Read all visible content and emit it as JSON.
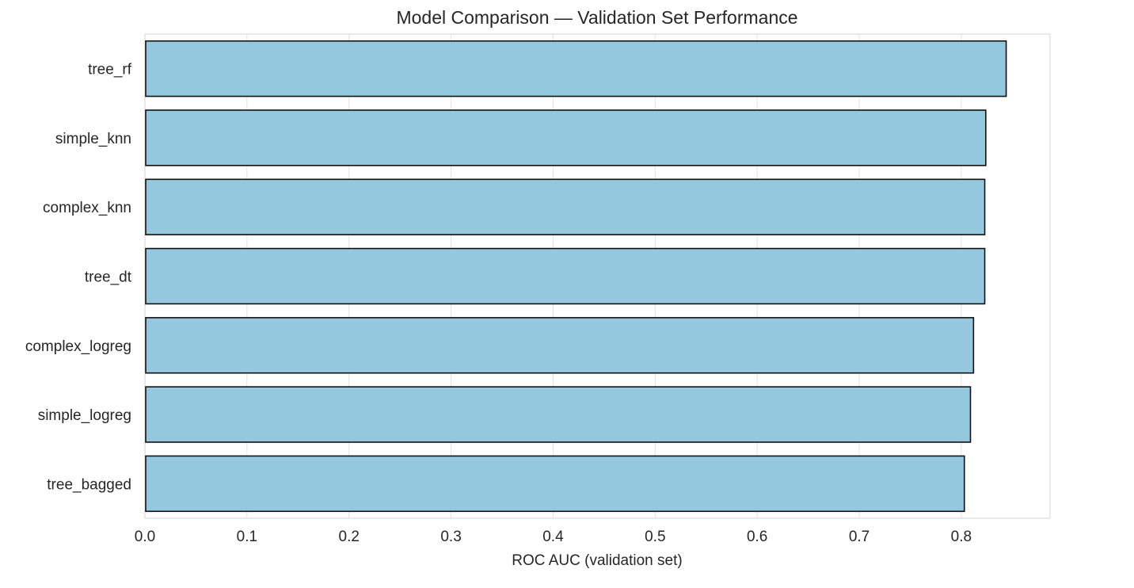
{
  "chart_data": {
    "type": "bar",
    "orientation": "horizontal",
    "title": "Model Comparison — Validation Set Performance",
    "xlabel": "ROC AUC (validation set)",
    "ylabel": "",
    "categories": [
      "tree_rf",
      "simple_knn",
      "complex_knn",
      "tree_dt",
      "complex_logreg",
      "simple_logreg",
      "tree_bagged"
    ],
    "values": [
      0.844,
      0.824,
      0.823,
      0.823,
      0.812,
      0.809,
      0.803
    ],
    "xlim": [
      0,
      0.887
    ],
    "xticks": [
      0.0,
      0.1,
      0.2,
      0.3,
      0.4,
      0.5,
      0.6,
      0.7,
      0.8
    ],
    "xtick_labels": [
      "0.0",
      "0.1",
      "0.2",
      "0.3",
      "0.4",
      "0.5",
      "0.6",
      "0.7",
      "0.8"
    ],
    "grid": "vertical",
    "legend": "none",
    "colors": {
      "bar_fill": "#95c8de",
      "bar_edge": "#111111",
      "grid": "#e3e3e3",
      "frame": "#d4d4d4",
      "text": "#262626"
    }
  }
}
